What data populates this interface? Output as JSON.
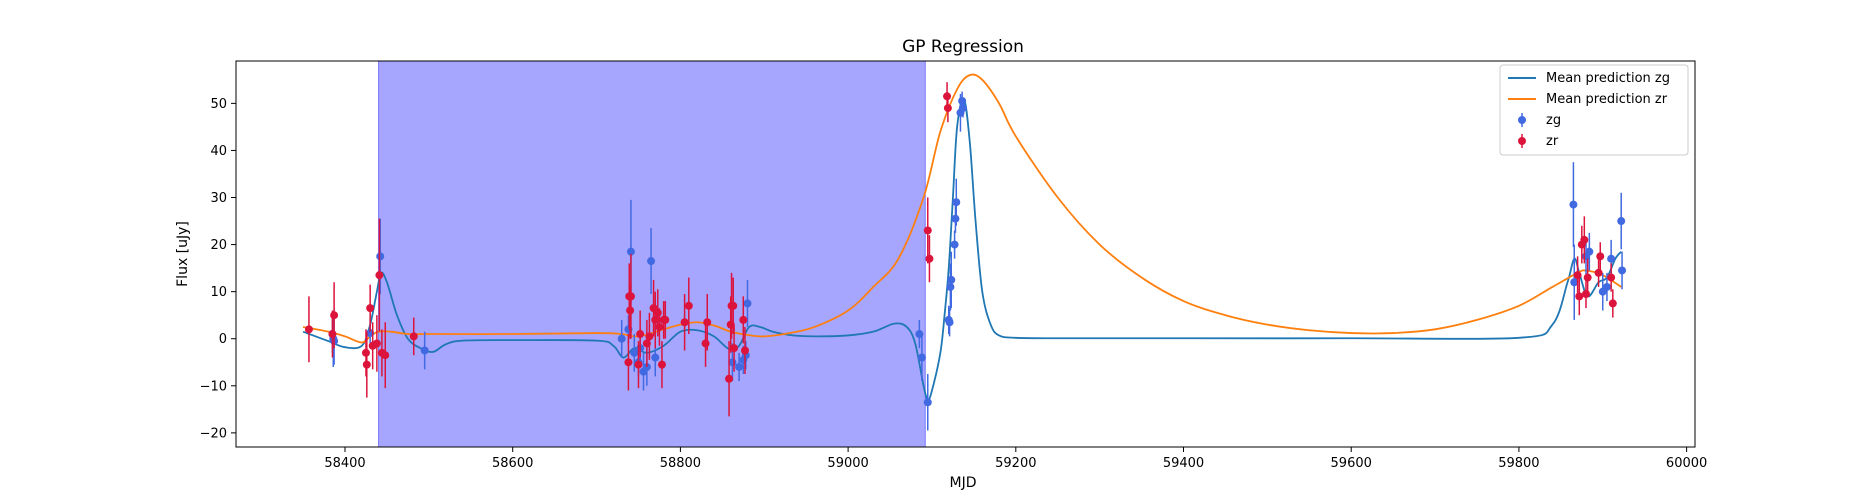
{
  "chart_data": {
    "type": "scatter",
    "title": "GP Regression",
    "xlabel": "MJD",
    "ylabel": "Flux [uJy]",
    "xlim": [
      58270,
      60010
    ],
    "ylim": [
      -23,
      59
    ],
    "xticks": [
      58400,
      58600,
      58800,
      59000,
      59200,
      59400,
      59600,
      59800,
      60000
    ],
    "yticks": [
      -20,
      -10,
      0,
      10,
      20,
      30,
      40,
      50
    ],
    "shaded_span": {
      "x0": 58440,
      "x1": 59092,
      "color": "#a6a6ff"
    },
    "legend_position": "upper right",
    "lines": [
      {
        "name": "Mean prediction zg",
        "color": "#1f77b4",
        "points": [
          [
            58350,
            1.5
          ],
          [
            58380,
            -0.5
          ],
          [
            58400,
            -1.8
          ],
          [
            58420,
            -1.5
          ],
          [
            58430,
            3
          ],
          [
            58438,
            10
          ],
          [
            58443,
            14
          ],
          [
            58450,
            12
          ],
          [
            58462,
            5
          ],
          [
            58475,
            0
          ],
          [
            58490,
            -2
          ],
          [
            58505,
            -2.8
          ],
          [
            58520,
            -1.2
          ],
          [
            58540,
            -0.4
          ],
          [
            58600,
            -0.3
          ],
          [
            58700,
            -0.4
          ],
          [
            58720,
            -1.5
          ],
          [
            58732,
            -4
          ],
          [
            58745,
            -2
          ],
          [
            58760,
            -3
          ],
          [
            58780,
            -1.5
          ],
          [
            58800,
            1.5
          ],
          [
            58820,
            1.8
          ],
          [
            58840,
            0.5
          ],
          [
            58858,
            -2.2
          ],
          [
            58870,
            -1.5
          ],
          [
            58882,
            2.5
          ],
          [
            58895,
            2.5
          ],
          [
            58910,
            1.5
          ],
          [
            58930,
            0.8
          ],
          [
            58960,
            0.5
          ],
          [
            59000,
            0.7
          ],
          [
            59030,
            1.5
          ],
          [
            59055,
            3.2
          ],
          [
            59070,
            2.5
          ],
          [
            59080,
            -1
          ],
          [
            59090,
            -10
          ],
          [
            59095,
            -13
          ],
          [
            59100,
            -11
          ],
          [
            59110,
            -3
          ],
          [
            59115,
            5
          ],
          [
            59120,
            15
          ],
          [
            59125,
            30
          ],
          [
            59130,
            45
          ],
          [
            59138,
            51
          ],
          [
            59145,
            42
          ],
          [
            59152,
            25
          ],
          [
            59160,
            10
          ],
          [
            59170,
            3
          ],
          [
            59180,
            0.7
          ],
          [
            59200,
            0.2
          ],
          [
            59250,
            0.1
          ],
          [
            59400,
            0.1
          ],
          [
            59600,
            0.1
          ],
          [
            59800,
            0.2
          ],
          [
            59840,
            3
          ],
          [
            59858,
            12
          ],
          [
            59866,
            17
          ],
          [
            59872,
            14
          ],
          [
            59882,
            9
          ],
          [
            59895,
            12
          ],
          [
            59905,
            13
          ],
          [
            59915,
            17
          ],
          [
            59922,
            18.5
          ]
        ]
      },
      {
        "name": "Mean prediction zr",
        "color": "#ff7f0e",
        "points": [
          [
            58350,
            2.5
          ],
          [
            58380,
            1.5
          ],
          [
            58400,
            0.5
          ],
          [
            58420,
            -0.8
          ],
          [
            58430,
            0.5
          ],
          [
            58440,
            1.5
          ],
          [
            58455,
            1.5
          ],
          [
            58475,
            1
          ],
          [
            58500,
            1
          ],
          [
            58600,
            1
          ],
          [
            58700,
            1.2
          ],
          [
            58730,
            1
          ],
          [
            58750,
            0.5
          ],
          [
            58780,
            2
          ],
          [
            58800,
            3
          ],
          [
            58820,
            3.5
          ],
          [
            58840,
            2.8
          ],
          [
            58860,
            1.5
          ],
          [
            58880,
            0.8
          ],
          [
            58900,
            0.5
          ],
          [
            58930,
            1.2
          ],
          [
            58960,
            2.5
          ],
          [
            59000,
            6
          ],
          [
            59030,
            11
          ],
          [
            59060,
            17
          ],
          [
            59090,
            30
          ],
          [
            59110,
            44
          ],
          [
            59130,
            53
          ],
          [
            59145,
            56
          ],
          [
            59160,
            55
          ],
          [
            59180,
            50
          ],
          [
            59200,
            43
          ],
          [
            59250,
            30
          ],
          [
            59300,
            20
          ],
          [
            59350,
            13
          ],
          [
            59400,
            8
          ],
          [
            59450,
            5
          ],
          [
            59500,
            3
          ],
          [
            59550,
            1.8
          ],
          [
            59600,
            1.2
          ],
          [
            59650,
            1.2
          ],
          [
            59700,
            2
          ],
          [
            59750,
            4
          ],
          [
            59800,
            7
          ],
          [
            59840,
            11
          ],
          [
            59870,
            14
          ],
          [
            59880,
            14.5
          ],
          [
            59900,
            13.5
          ],
          [
            59922,
            11
          ]
        ]
      }
    ],
    "series": [
      {
        "name": "zg",
        "color": "#4169e1",
        "points": [
          [
            58385,
            1,
            4
          ],
          [
            58386,
            0,
            6
          ],
          [
            58387,
            -0.5,
            5
          ],
          [
            58430,
            1.2,
            3
          ],
          [
            58442,
            17.5,
            8
          ],
          [
            58495,
            -2.5,
            4
          ],
          [
            58730,
            0,
            4
          ],
          [
            58738,
            2,
            3
          ],
          [
            58741,
            18.5,
            11
          ],
          [
            58745,
            -3,
            4
          ],
          [
            58750,
            -5,
            3
          ],
          [
            58752,
            -2,
            4
          ],
          [
            58756,
            -7,
            4
          ],
          [
            58760,
            -6,
            4
          ],
          [
            58765,
            16.5,
            7
          ],
          [
            58770,
            -4,
            4
          ],
          [
            58862,
            -5,
            4
          ],
          [
            58870,
            -6,
            3
          ],
          [
            58875,
            -4.5,
            3
          ],
          [
            58878,
            -3.5,
            3
          ],
          [
            58880,
            7.5,
            5
          ],
          [
            59085,
            1,
            3
          ],
          [
            59088,
            -4,
            5
          ],
          [
            59095,
            -13.5,
            6
          ],
          [
            59120,
            4,
            3
          ],
          [
            59121,
            3.5,
            3
          ],
          [
            59122,
            11,
            5
          ],
          [
            59123,
            12.5,
            6
          ],
          [
            59127,
            20,
            3
          ],
          [
            59128,
            25.5,
            3
          ],
          [
            59129,
            29,
            5
          ],
          [
            59134,
            48,
            4
          ],
          [
            59136,
            50.5,
            2
          ],
          [
            59137,
            49,
            2
          ],
          [
            59865,
            28.5,
            9
          ],
          [
            59866,
            12,
            8
          ],
          [
            59880,
            17.5,
            4
          ],
          [
            59884,
            18.5,
            4
          ],
          [
            59900,
            10,
            4
          ],
          [
            59905,
            11,
            3
          ],
          [
            59910,
            17,
            4
          ],
          [
            59922,
            25,
            6
          ],
          [
            59923,
            14.5,
            4
          ]
        ]
      },
      {
        "name": "zr",
        "color": "#dc143c",
        "points": [
          [
            58357,
            2,
            7
          ],
          [
            58385,
            1,
            5
          ],
          [
            58387,
            5,
            7
          ],
          [
            58425,
            -3,
            5
          ],
          [
            58426,
            -5.5,
            7
          ],
          [
            58430,
            6.5,
            5
          ],
          [
            58433,
            -1.5,
            5
          ],
          [
            58438,
            -1,
            6
          ],
          [
            58441,
            13.5,
            12
          ],
          [
            58444,
            -3,
            5
          ],
          [
            58448,
            -3.5,
            7
          ],
          [
            58482,
            0.5,
            4
          ],
          [
            58738,
            -5,
            6
          ],
          [
            58739,
            9,
            7
          ],
          [
            58740,
            6,
            6
          ],
          [
            58741,
            9,
            9
          ],
          [
            58750,
            -5.5,
            5
          ],
          [
            58752,
            1,
            5
          ],
          [
            58760,
            -1,
            5
          ],
          [
            58763,
            0.5,
            5
          ],
          [
            58768,
            6.5,
            6
          ],
          [
            58770,
            4,
            6
          ],
          [
            58773,
            5.5,
            5
          ],
          [
            58775,
            2.5,
            4
          ],
          [
            58778,
            -5.5,
            5
          ],
          [
            58780,
            4,
            4
          ],
          [
            58782,
            4,
            4
          ],
          [
            58805,
            3.5,
            6
          ],
          [
            58810,
            7,
            6
          ],
          [
            58830,
            -1,
            5
          ],
          [
            58832,
            3.5,
            6
          ],
          [
            58858,
            -8.5,
            8
          ],
          [
            58860,
            3,
            6
          ],
          [
            58861,
            7,
            7
          ],
          [
            58863,
            7,
            6
          ],
          [
            58864,
            -2,
            5
          ],
          [
            58875,
            4,
            5
          ],
          [
            58877,
            -2.5,
            5
          ],
          [
            59095,
            23,
            7
          ],
          [
            59097,
            17,
            5
          ],
          [
            59118,
            51.5,
            3
          ],
          [
            59119,
            49,
            3
          ],
          [
            59870,
            13.5,
            4
          ],
          [
            59872,
            9,
            4
          ],
          [
            59875,
            20,
            4
          ],
          [
            59878,
            21,
            5
          ],
          [
            59880,
            9.5,
            3
          ],
          [
            59882,
            13,
            4
          ],
          [
            59895,
            14,
            3
          ],
          [
            59897,
            17.5,
            3
          ],
          [
            59910,
            13,
            3
          ],
          [
            59912,
            7.5,
            3
          ]
        ]
      }
    ]
  }
}
